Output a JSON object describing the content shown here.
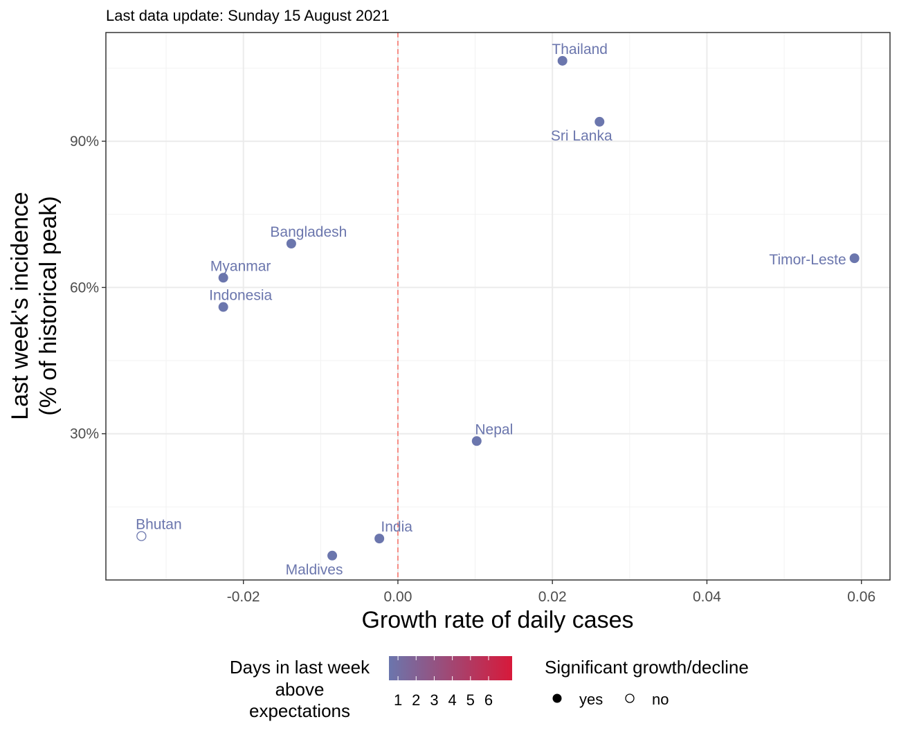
{
  "subtitle": "Last data update: Sunday 15 August 2021",
  "chart_data": {
    "type": "scatter",
    "xlabel": "Growth rate of daily cases",
    "ylabel_line1": "Last week's incidence",
    "ylabel_line2": "(% of historical peak)",
    "xlim": [
      -0.0378,
      0.0637
    ],
    "ylim": [
      0.0,
      1.123
    ],
    "x_ticks": [
      -0.02,
      0.0,
      0.02,
      0.04,
      0.06
    ],
    "x_tick_labels": [
      "-0.02",
      "0.00",
      "0.02",
      "0.04",
      "0.06"
    ],
    "y_ticks": [
      0.3,
      0.6,
      0.9
    ],
    "y_tick_labels": [
      "30%",
      "60%",
      "90%"
    ],
    "y_minor_ticks": [
      0.15,
      0.45,
      0.75,
      1.05
    ],
    "x_minor_ticks": [
      -0.03,
      -0.01,
      0.01,
      0.03,
      0.05
    ],
    "reference_line_x": 0.0,
    "reference_line_color": "#f8766d",
    "grid": true,
    "points": [
      {
        "name": "Thailand",
        "x": 0.0213,
        "y": 1.065,
        "days": 1,
        "significant": "yes",
        "label_pos": "above"
      },
      {
        "name": "Sri Lanka",
        "x": 0.0261,
        "y": 0.94,
        "days": 1,
        "significant": "yes",
        "label_pos": "below"
      },
      {
        "name": "Bangladesh",
        "x": -0.0138,
        "y": 0.69,
        "days": 1,
        "significant": "yes",
        "label_pos": "above"
      },
      {
        "name": "Timor-Leste",
        "x": 0.0591,
        "y": 0.66,
        "days": 1,
        "significant": "yes",
        "label_pos": "left"
      },
      {
        "name": "Myanmar",
        "x": -0.0226,
        "y": 0.62,
        "days": 1,
        "significant": "yes",
        "label_pos": "above"
      },
      {
        "name": "Indonesia",
        "x": -0.0226,
        "y": 0.56,
        "days": 1,
        "significant": "yes",
        "label_pos": "above"
      },
      {
        "name": "Nepal",
        "x": 0.0102,
        "y": 0.285,
        "days": 1,
        "significant": "yes",
        "label_pos": "above"
      },
      {
        "name": "Bhutan",
        "x": -0.0332,
        "y": 0.09,
        "days": 1,
        "significant": "no",
        "label_pos": "above"
      },
      {
        "name": "India",
        "x": -0.0024,
        "y": 0.085,
        "days": 1,
        "significant": "yes",
        "label_pos": "above"
      },
      {
        "name": "Maldives",
        "x": -0.0085,
        "y": 0.05,
        "days": 1,
        "significant": "yes",
        "label_pos": "below"
      }
    ]
  },
  "legend": {
    "color_title_lines": [
      "Days in last week",
      "above",
      "expectations"
    ],
    "color_scale_labels": [
      "1",
      "2",
      "3",
      "4",
      "5",
      "6"
    ],
    "color_low": "#6b76ad",
    "color_high": "#d7193a",
    "shape_title": "Significant growth/decline",
    "shape_items": [
      {
        "label": "yes",
        "filled": true
      },
      {
        "label": "no",
        "filled": false
      }
    ]
  }
}
